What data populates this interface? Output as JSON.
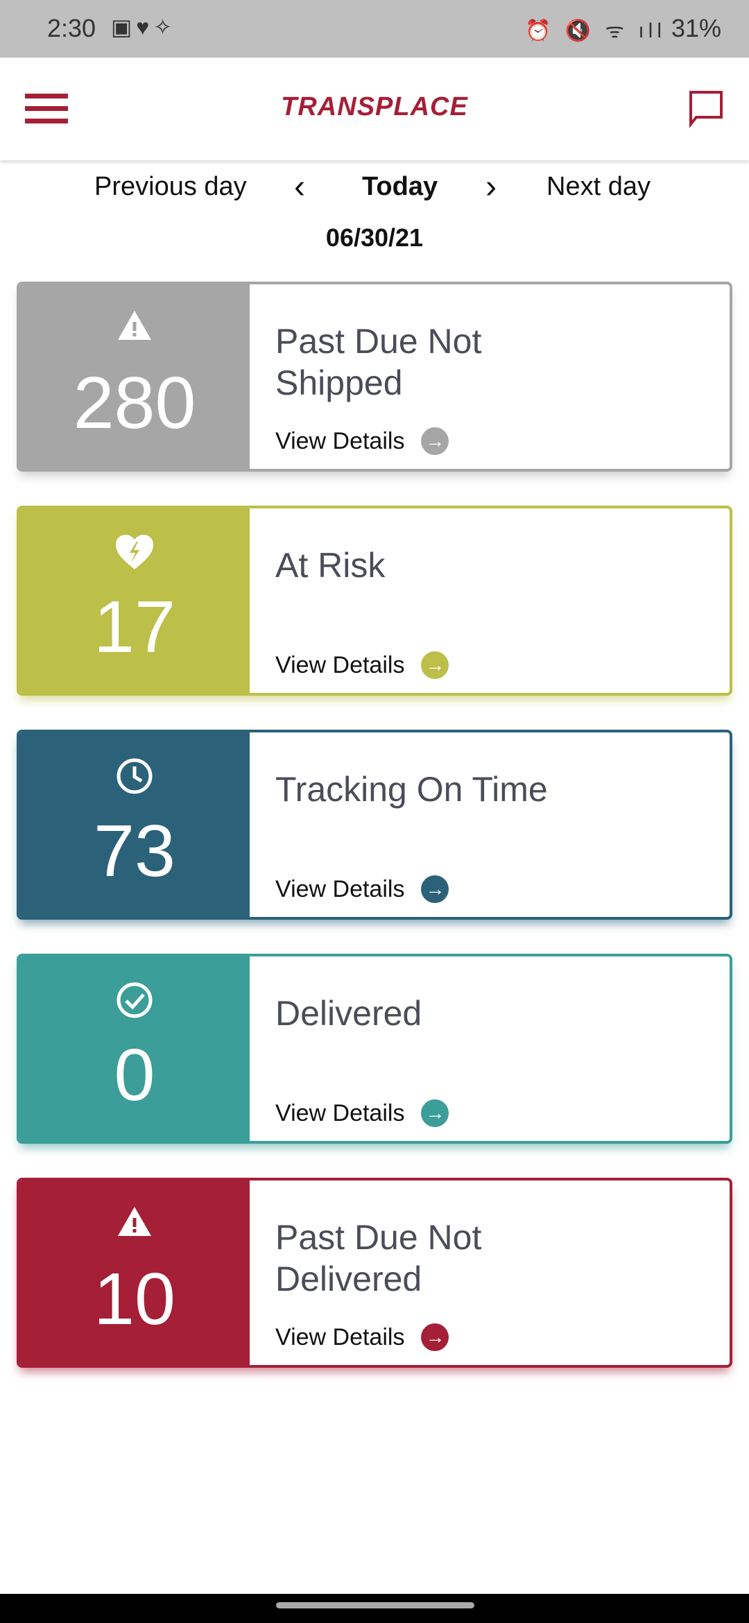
{
  "status_bar": {
    "time": "2:30",
    "battery": "31%"
  },
  "header": {
    "logo": "TRANSPLACE"
  },
  "nav": {
    "previous": "Previous day",
    "prev_arrow": "‹",
    "current": "Today",
    "next_arrow": "›",
    "next": "Next day",
    "date": "06/30/21"
  },
  "cards": [
    {
      "count": "280",
      "title": "Past Due Not Shipped",
      "link": "View Details",
      "icon": "warning-icon",
      "color": "#a6a6a6"
    },
    {
      "count": "17",
      "title": "At Risk",
      "link": "View Details",
      "icon": "broken-heart-icon",
      "color": "#bcbf48"
    },
    {
      "count": "73",
      "title": "Tracking On Time",
      "link": "View Details",
      "icon": "clock-icon",
      "color": "#2b6279"
    },
    {
      "count": "0",
      "title": "Delivered",
      "link": "View Details",
      "icon": "check-circle-icon",
      "color": "#3c9e98"
    },
    {
      "count": "10",
      "title": "Past Due Not Delivered",
      "link": "View Details",
      "icon": "warning-icon",
      "color": "#a51f37"
    }
  ]
}
